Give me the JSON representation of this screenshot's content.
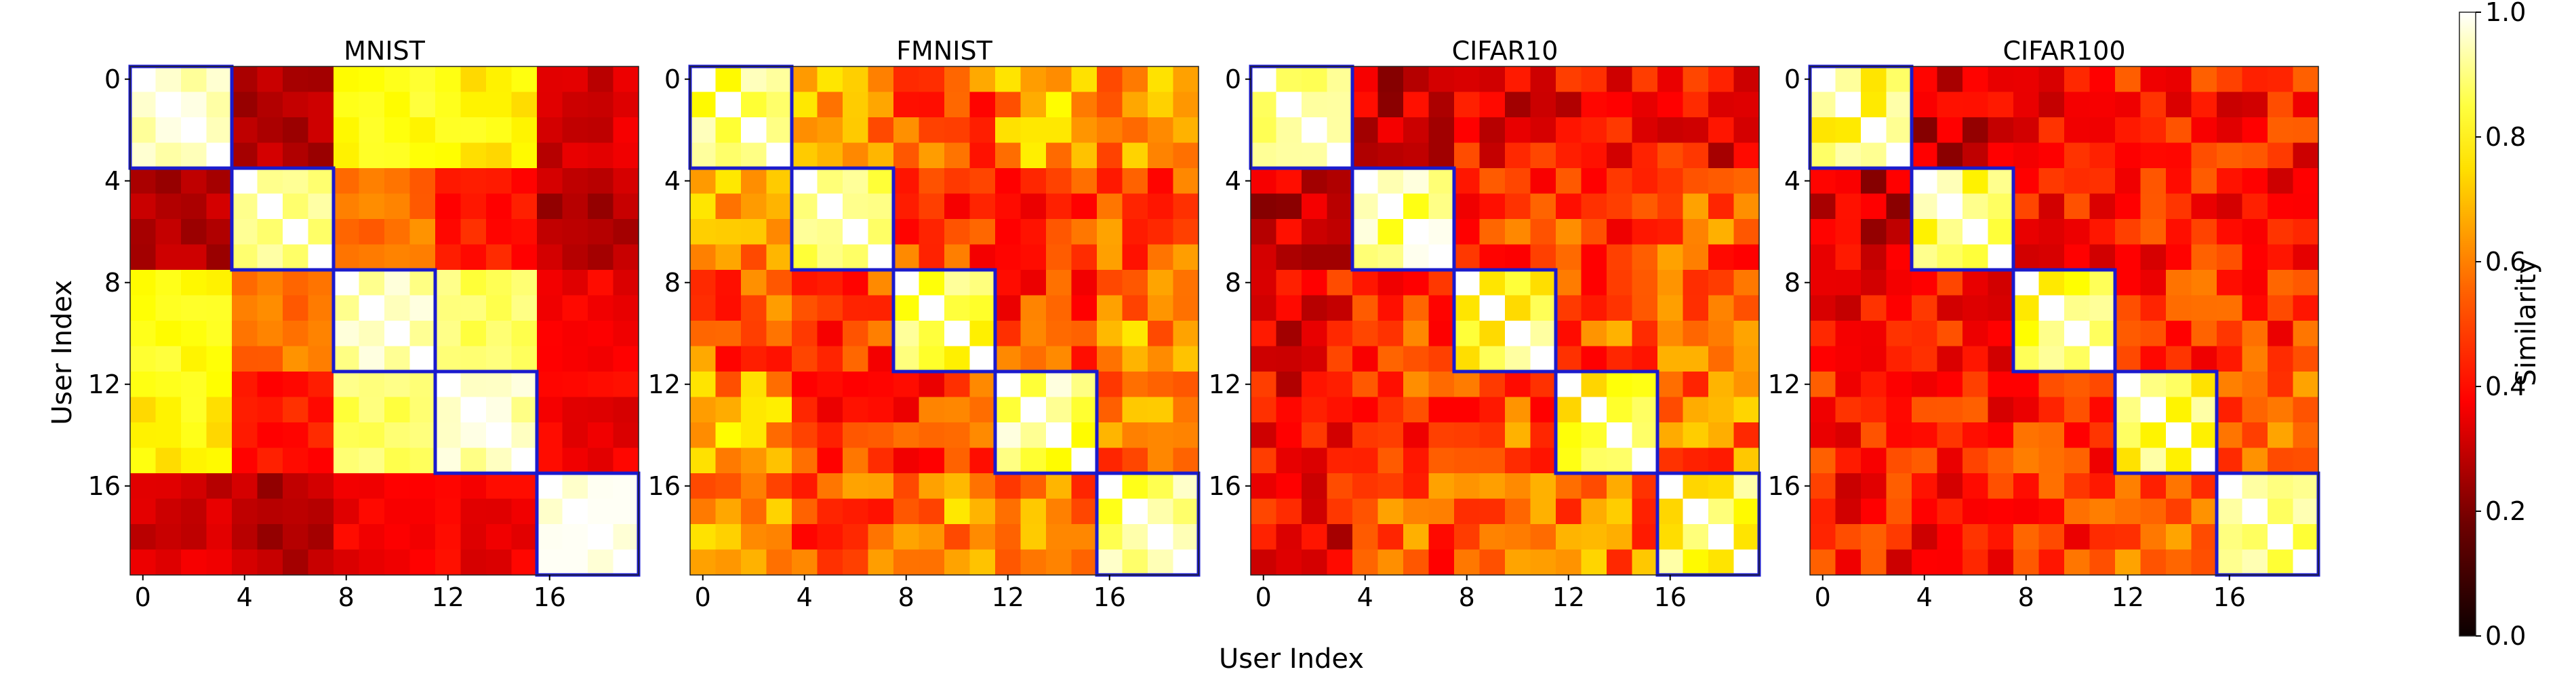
{
  "figure": {
    "xlabel": "User Index",
    "ylabel": "User Index",
    "colorbar_label": "Similarity",
    "colormap": "hot",
    "colorbar_ticks": [
      "0.0",
      "0.2",
      "0.4",
      "0.6",
      "0.8",
      "1.0"
    ],
    "cluster_box_color": "#1a1acd"
  },
  "chart_data": [
    {
      "type": "heatmap",
      "title": "MNIST",
      "xlabel": "User Index",
      "ylabel": "User Index",
      "x_ticks": [
        "0",
        "4",
        "8",
        "12",
        "16"
      ],
      "y_ticks": [
        "0",
        "4",
        "8",
        "12",
        "16"
      ],
      "n_users": 20,
      "clusters": [
        [
          0,
          3
        ],
        [
          4,
          7
        ],
        [
          8,
          11
        ],
        [
          12,
          15
        ],
        [
          16,
          19
        ]
      ],
      "vlim": [
        0.0,
        1.0
      ],
      "block_similarity": [
        [
          0.93,
          0.25,
          0.78,
          0.74,
          0.3
        ],
        [
          0.25,
          0.9,
          0.55,
          0.4,
          0.25
        ],
        [
          0.78,
          0.55,
          0.92,
          0.85,
          0.35
        ],
        [
          0.74,
          0.4,
          0.85,
          0.93,
          0.35
        ],
        [
          0.3,
          0.25,
          0.35,
          0.35,
          0.96
        ]
      ],
      "noise": 0.05
    },
    {
      "type": "heatmap",
      "title": "FMNIST",
      "xlabel": "User Index",
      "ylabel": "User Index",
      "x_ticks": [
        "0",
        "4",
        "8",
        "12",
        "16"
      ],
      "y_ticks": [
        "0",
        "4",
        "8",
        "12",
        "16"
      ],
      "n_users": 20,
      "clusters": [
        [
          0,
          3
        ],
        [
          4,
          7
        ],
        [
          8,
          11
        ],
        [
          12,
          15
        ],
        [
          16,
          19
        ]
      ],
      "vlim": [
        0.0,
        1.0
      ],
      "block_similarity": [
        [
          0.85,
          0.6,
          0.5,
          0.62,
          0.6
        ],
        [
          0.6,
          0.85,
          0.45,
          0.45,
          0.5
        ],
        [
          0.5,
          0.45,
          0.85,
          0.45,
          0.6
        ],
        [
          0.62,
          0.45,
          0.45,
          0.85,
          0.55
        ],
        [
          0.6,
          0.5,
          0.6,
          0.55,
          0.85
        ]
      ],
      "noise": 0.13
    },
    {
      "type": "heatmap",
      "title": "CIFAR10",
      "xlabel": "User Index",
      "ylabel": "User Index",
      "x_ticks": [
        "0",
        "4",
        "8",
        "12",
        "16"
      ],
      "y_ticks": [
        "0",
        "4",
        "8",
        "12",
        "16"
      ],
      "n_users": 20,
      "clusters": [
        [
          0,
          3
        ],
        [
          4,
          7
        ],
        [
          8,
          11
        ],
        [
          12,
          15
        ],
        [
          16,
          19
        ]
      ],
      "vlim": [
        0.0,
        1.0
      ],
      "block_similarity": [
        [
          0.85,
          0.3,
          0.35,
          0.35,
          0.35
        ],
        [
          0.3,
          0.85,
          0.45,
          0.45,
          0.5
        ],
        [
          0.35,
          0.45,
          0.82,
          0.5,
          0.55
        ],
        [
          0.35,
          0.45,
          0.5,
          0.82,
          0.55
        ],
        [
          0.35,
          0.5,
          0.55,
          0.55,
          0.82
        ]
      ],
      "noise": 0.14
    },
    {
      "type": "heatmap",
      "title": "CIFAR100",
      "xlabel": "User Index",
      "ylabel": "User Index",
      "x_ticks": [
        "0",
        "4",
        "8",
        "12",
        "16"
      ],
      "y_ticks": [
        "0",
        "4",
        "8",
        "12",
        "16"
      ],
      "n_users": 20,
      "clusters": [
        [
          0,
          3
        ],
        [
          4,
          7
        ],
        [
          8,
          11
        ],
        [
          12,
          15
        ],
        [
          16,
          19
        ]
      ],
      "vlim": [
        0.0,
        1.0
      ],
      "block_similarity": [
        [
          0.82,
          0.3,
          0.35,
          0.4,
          0.4
        ],
        [
          0.3,
          0.82,
          0.4,
          0.4,
          0.4
        ],
        [
          0.35,
          0.4,
          0.82,
          0.45,
          0.45
        ],
        [
          0.4,
          0.4,
          0.45,
          0.82,
          0.5
        ],
        [
          0.4,
          0.4,
          0.45,
          0.5,
          0.82
        ]
      ],
      "noise": 0.12
    }
  ]
}
